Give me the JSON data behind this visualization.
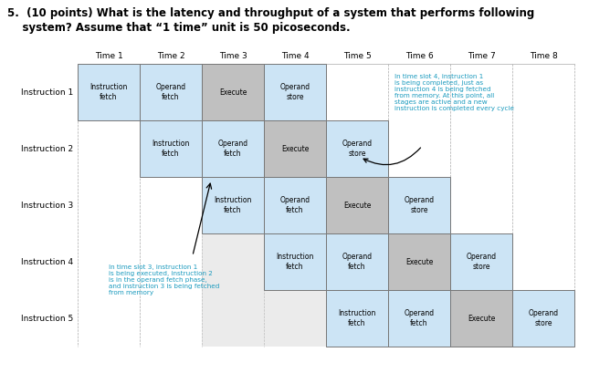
{
  "title_line1": "5.  (10 points) What is the latency and throughput of a system that performs following",
  "title_line2": "    system? Assume that “1 time” unit is 50 picoseconds.",
  "time_labels": [
    "Time 1",
    "Time 2",
    "Time 3",
    "Time 4",
    "Time 5",
    "Time 6",
    "Time 7",
    "Time 8"
  ],
  "instruction_labels": [
    "Instruction 1",
    "Instruction 2",
    "Instruction 3",
    "Instruction 4",
    "Instruction 5"
  ],
  "stages": [
    "Instruction\nfetch",
    "Operand\nfetch",
    "Execute",
    "Operand\nstore"
  ],
  "pipeline": [
    [
      1,
      2,
      3,
      4
    ],
    [
      2,
      3,
      4,
      5
    ],
    [
      3,
      4,
      5,
      6
    ],
    [
      4,
      5,
      6,
      7
    ],
    [
      5,
      6,
      7,
      8
    ]
  ],
  "stage_colors": [
    "#cce4f5",
    "#cce4f5",
    "#c0c0c0",
    "#cce4f5"
  ],
  "color_white": "#ffffff",
  "color_cyan_text": "#1a9abe",
  "color_black": "#000000",
  "color_gray_band": "#d4d4d4",
  "annotation1_text": "In time slot 3, instruction 1\nis being executed, instruction 2\nis in the operand fetch phase,\nand instruction 3 is being fetched\nfrom memory",
  "annotation2_text": "In time slot 4, instruction 1\nis being completed, just as\ninstruction 4 is being fetched\nfrom memory. At this point, all\nstages are active and a new\ninstruction is completed every cycle",
  "fig_width": 6.45,
  "fig_height": 4.09,
  "dpi": 100
}
